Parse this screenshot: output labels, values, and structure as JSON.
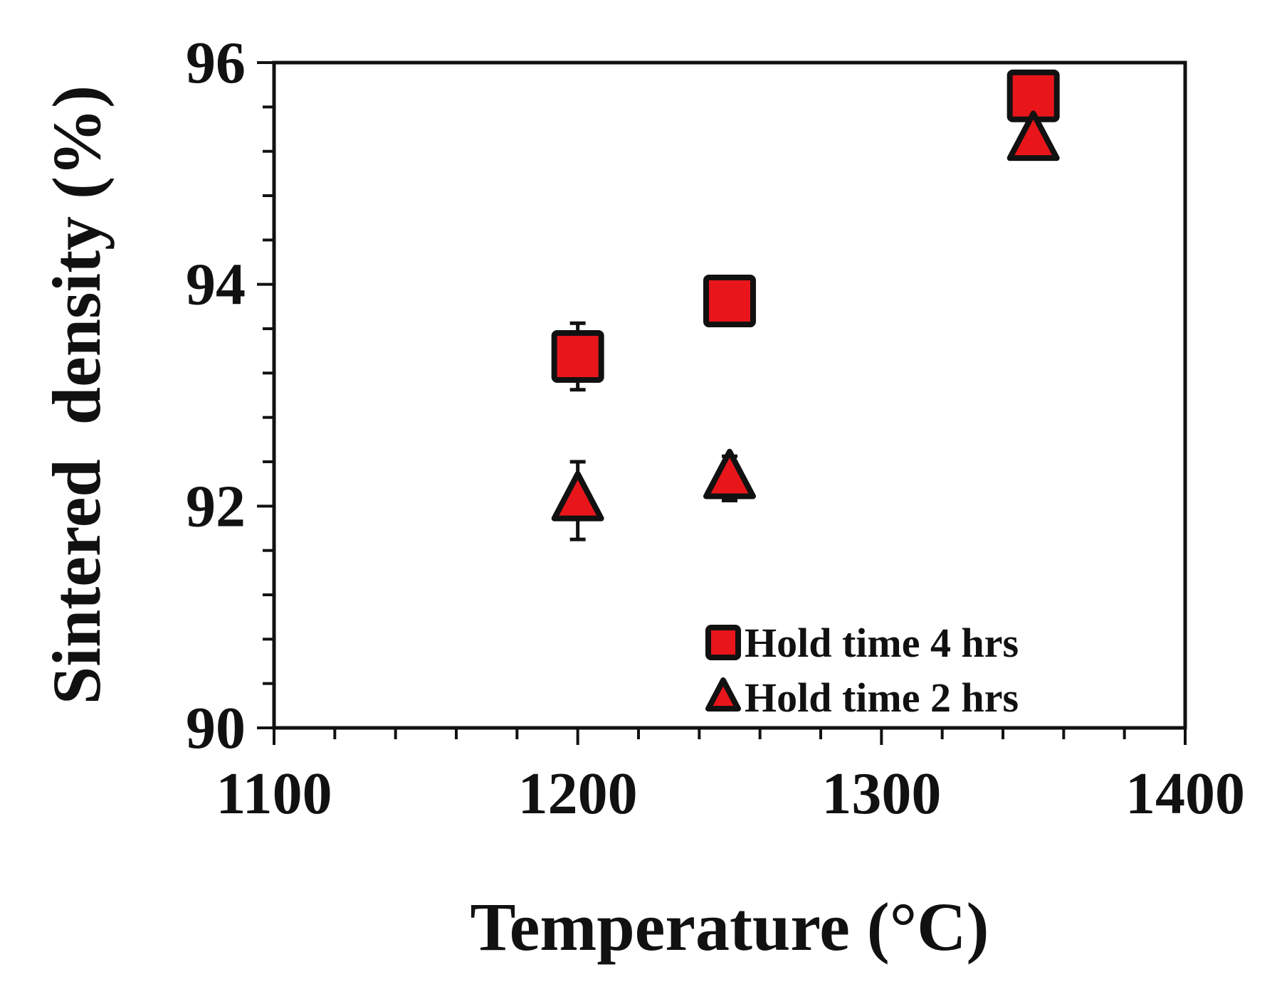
{
  "chart_data": {
    "type": "scatter",
    "title": "",
    "xlabel": "Temperature (°C)",
    "ylabel": "Sintered  density (%)",
    "xlim": [
      1100,
      1400
    ],
    "ylim": [
      90,
      96
    ],
    "x_ticks": [
      1100,
      1200,
      1300,
      1400
    ],
    "x_minor_step": 20,
    "y_ticks": [
      90,
      92,
      94,
      96
    ],
    "y_minor_step": 0.4,
    "grid": false,
    "legend_position": "bottom-right",
    "marker_color": "#e8161b",
    "edge_color": "#111111",
    "series": [
      {
        "name": "Hold time 4 hrs",
        "marker": "square",
        "x": [
          1200,
          1250,
          1350
        ],
        "y": [
          93.35,
          93.85,
          95.7
        ],
        "err": [
          0.3,
          0.1,
          0.1
        ]
      },
      {
        "name": "Hold time 2 hrs",
        "marker": "triangle",
        "x": [
          1200,
          1250,
          1350
        ],
        "y": [
          92.05,
          92.25,
          95.3
        ],
        "err": [
          0.35,
          0.2,
          0.1
        ]
      }
    ]
  }
}
